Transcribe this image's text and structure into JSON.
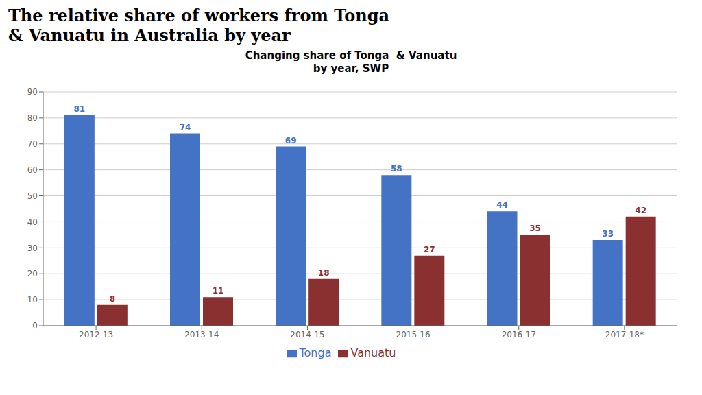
{
  "chart_data": {
    "type": "bar",
    "title": "The relative share of workers from Tonga\n& Vanuatu in Australia by year",
    "subtitle": "Changing share of Tonga  & Vanuatu\nby year, SWP",
    "categories": [
      "2012-13",
      "2013-14",
      "2014-15",
      "2015-16",
      "2016-17",
      "2017-18*"
    ],
    "series": [
      {
        "name": "Tonga",
        "color": "#4472C4",
        "values": [
          81,
          74,
          69,
          58,
          44,
          33
        ]
      },
      {
        "name": "Vanuatu",
        "color": "#8B3030",
        "values": [
          8,
          11,
          18,
          27,
          35,
          42
        ]
      }
    ],
    "ylim": [
      0,
      90
    ],
    "yticks": [
      0,
      10,
      20,
      30,
      40,
      50,
      60,
      70,
      80,
      90
    ],
    "grid": true,
    "legend": "bottom",
    "data_labels": true
  }
}
